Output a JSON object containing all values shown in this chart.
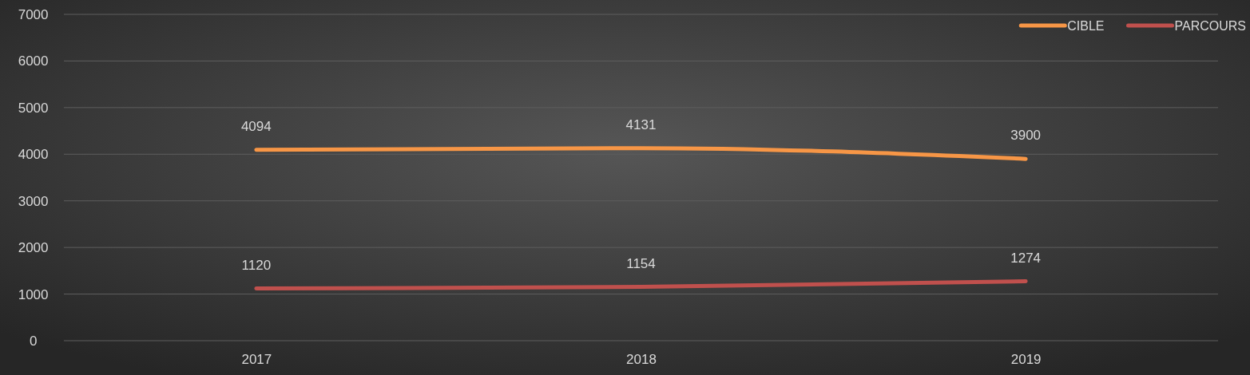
{
  "chart_data": {
    "type": "line",
    "categories": [
      "2017",
      "2018",
      "2019"
    ],
    "series": [
      {
        "name": "CIBLE",
        "color": "#f79646",
        "values": [
          4094,
          4131,
          3900
        ]
      },
      {
        "name": "PARCOURS",
        "color": "#c0504d",
        "values": [
          1120,
          1154,
          1274
        ]
      }
    ],
    "ylim": [
      0,
      7000
    ],
    "yticks": [
      0,
      1000,
      2000,
      3000,
      4000,
      5000,
      6000,
      7000
    ],
    "grid": "y",
    "legend": "top right",
    "data_labels": true,
    "marker": "none",
    "line_style": "solid"
  }
}
